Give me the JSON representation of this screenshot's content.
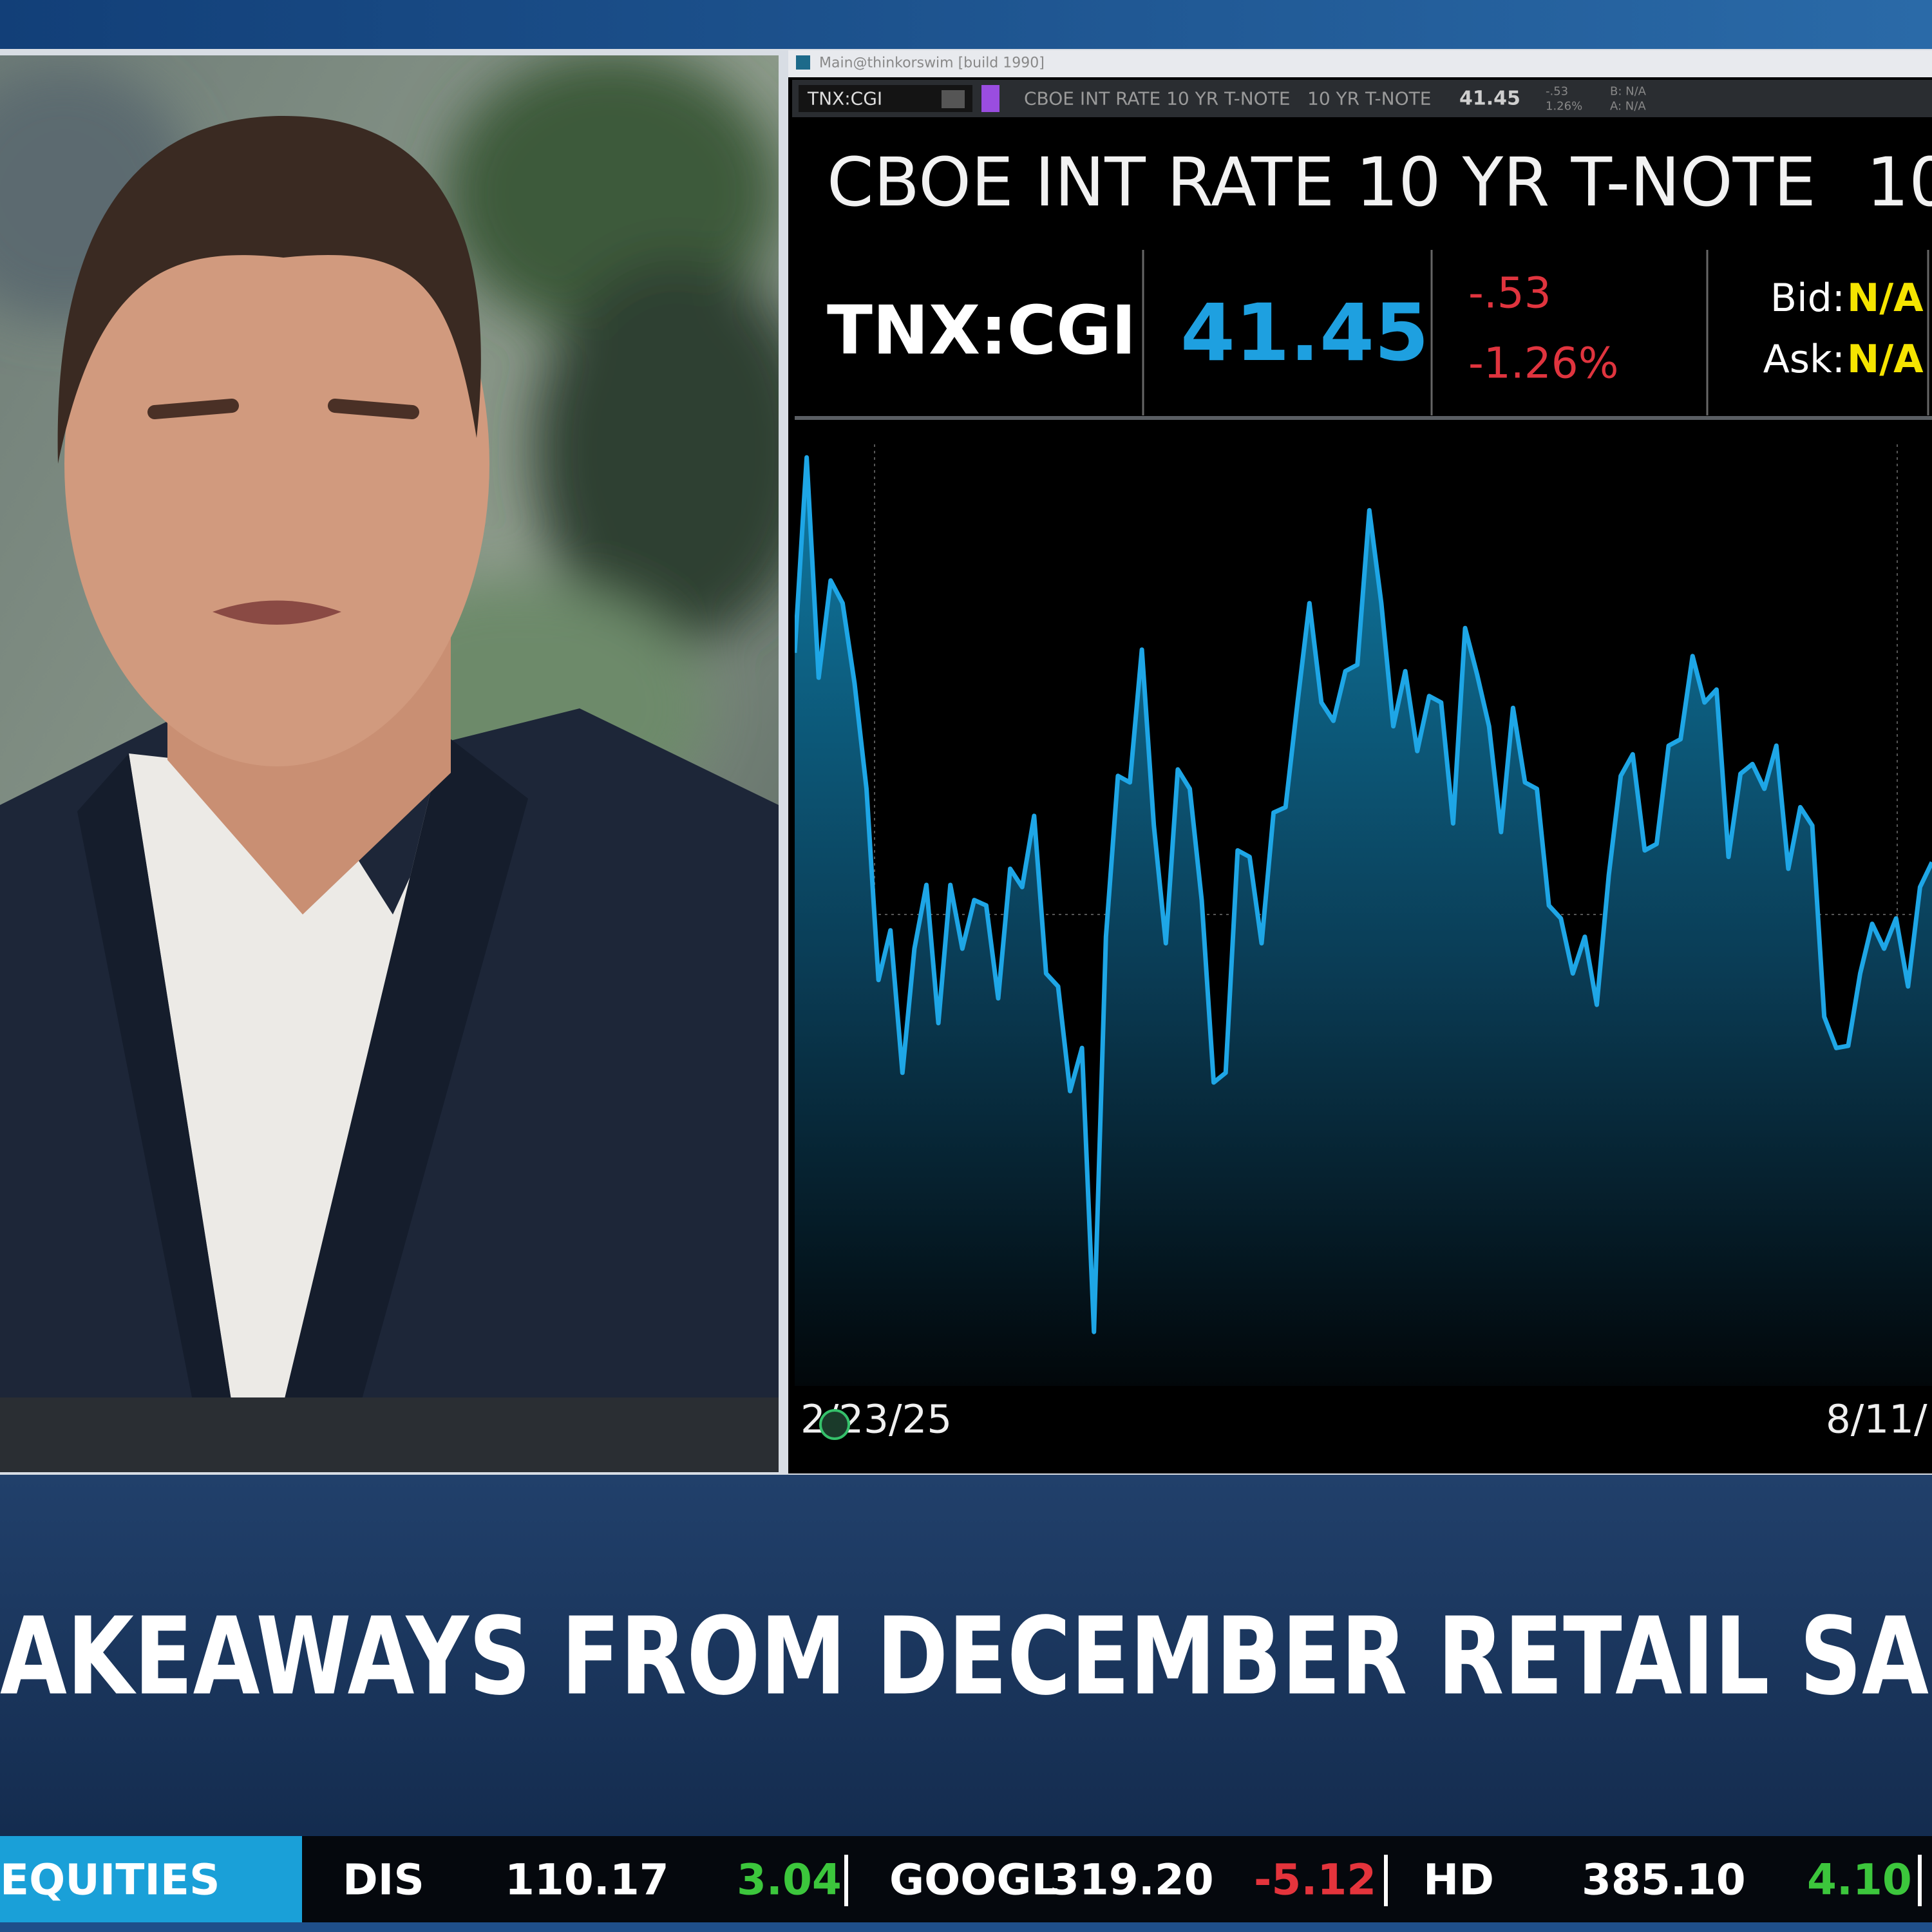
{
  "window_title": "Main@thinkorswim [build 1990]",
  "toolbar": {
    "symbol": "TNX:CGI",
    "description": "CBOE INT RATE 10 YR T-NOTE",
    "short_name": "10 YR T-NOTE",
    "last": "41.45",
    "change": "-.53",
    "percent": "1.26%",
    "bid": "B: N/A",
    "ask": "A: N/A"
  },
  "quote": {
    "title": "CBOE INT RATE 10 YR T-NOTE",
    "title_extra": "10",
    "symbol": "TNX:CGI",
    "last": "41.45",
    "change": "-.53",
    "percent_change": "-1.26%",
    "bid_label": "Bid:",
    "bid": "N/A",
    "ask_label": "Ask:",
    "ask": "N/A"
  },
  "chart_data": {
    "type": "area",
    "color": "#1ea6e6",
    "ylim": [
      39.4,
      48.3
    ],
    "x_labels": [
      "2/23/25",
      "8/11/"
    ],
    "values": [
      46.19,
      48.0,
      45.96,
      46.86,
      46.65,
      45.91,
      44.93,
      43.16,
      43.62,
      42.3,
      43.45,
      44.04,
      42.76,
      44.04,
      43.45,
      43.9,
      43.85,
      42.99,
      44.19,
      44.02,
      44.68,
      43.22,
      43.1,
      42.13,
      42.53,
      39.9,
      43.56,
      45.05,
      44.99,
      46.22,
      44.59,
      43.5,
      45.11,
      44.93,
      43.9,
      42.21,
      42.3,
      44.36,
      44.3,
      43.5,
      44.71,
      44.76,
      45.73,
      46.65,
      45.73,
      45.56,
      46.02,
      46.08,
      47.51,
      46.65,
      45.51,
      46.02,
      45.28,
      45.79,
      45.73,
      44.61,
      46.42,
      45.99,
      45.51,
      44.53,
      45.68,
      44.99,
      44.93,
      43.85,
      43.73,
      43.22,
      43.56,
      42.93,
      44.13,
      45.05,
      45.25,
      44.36,
      44.42,
      45.33,
      45.39,
      46.16,
      45.73,
      45.85,
      44.3,
      45.07,
      45.16,
      44.93,
      45.33,
      44.19,
      44.76,
      44.59,
      42.82,
      42.53,
      42.55,
      43.22,
      43.68,
      43.45,
      43.73,
      43.1,
      44.02,
      44.25
    ]
  },
  "headline": "AKEAWAYS FROM DECEMBER RETAIL SA",
  "ticker": {
    "label": "EQUITIES",
    "items": [
      {
        "symbol": "DIS",
        "price": "110.17",
        "change": "3.04"
      },
      {
        "symbol": "GOOGL",
        "price": "319.20",
        "change": "-5.12"
      },
      {
        "symbol": "HD",
        "price": "385.10",
        "change": "4.10"
      }
    ]
  }
}
